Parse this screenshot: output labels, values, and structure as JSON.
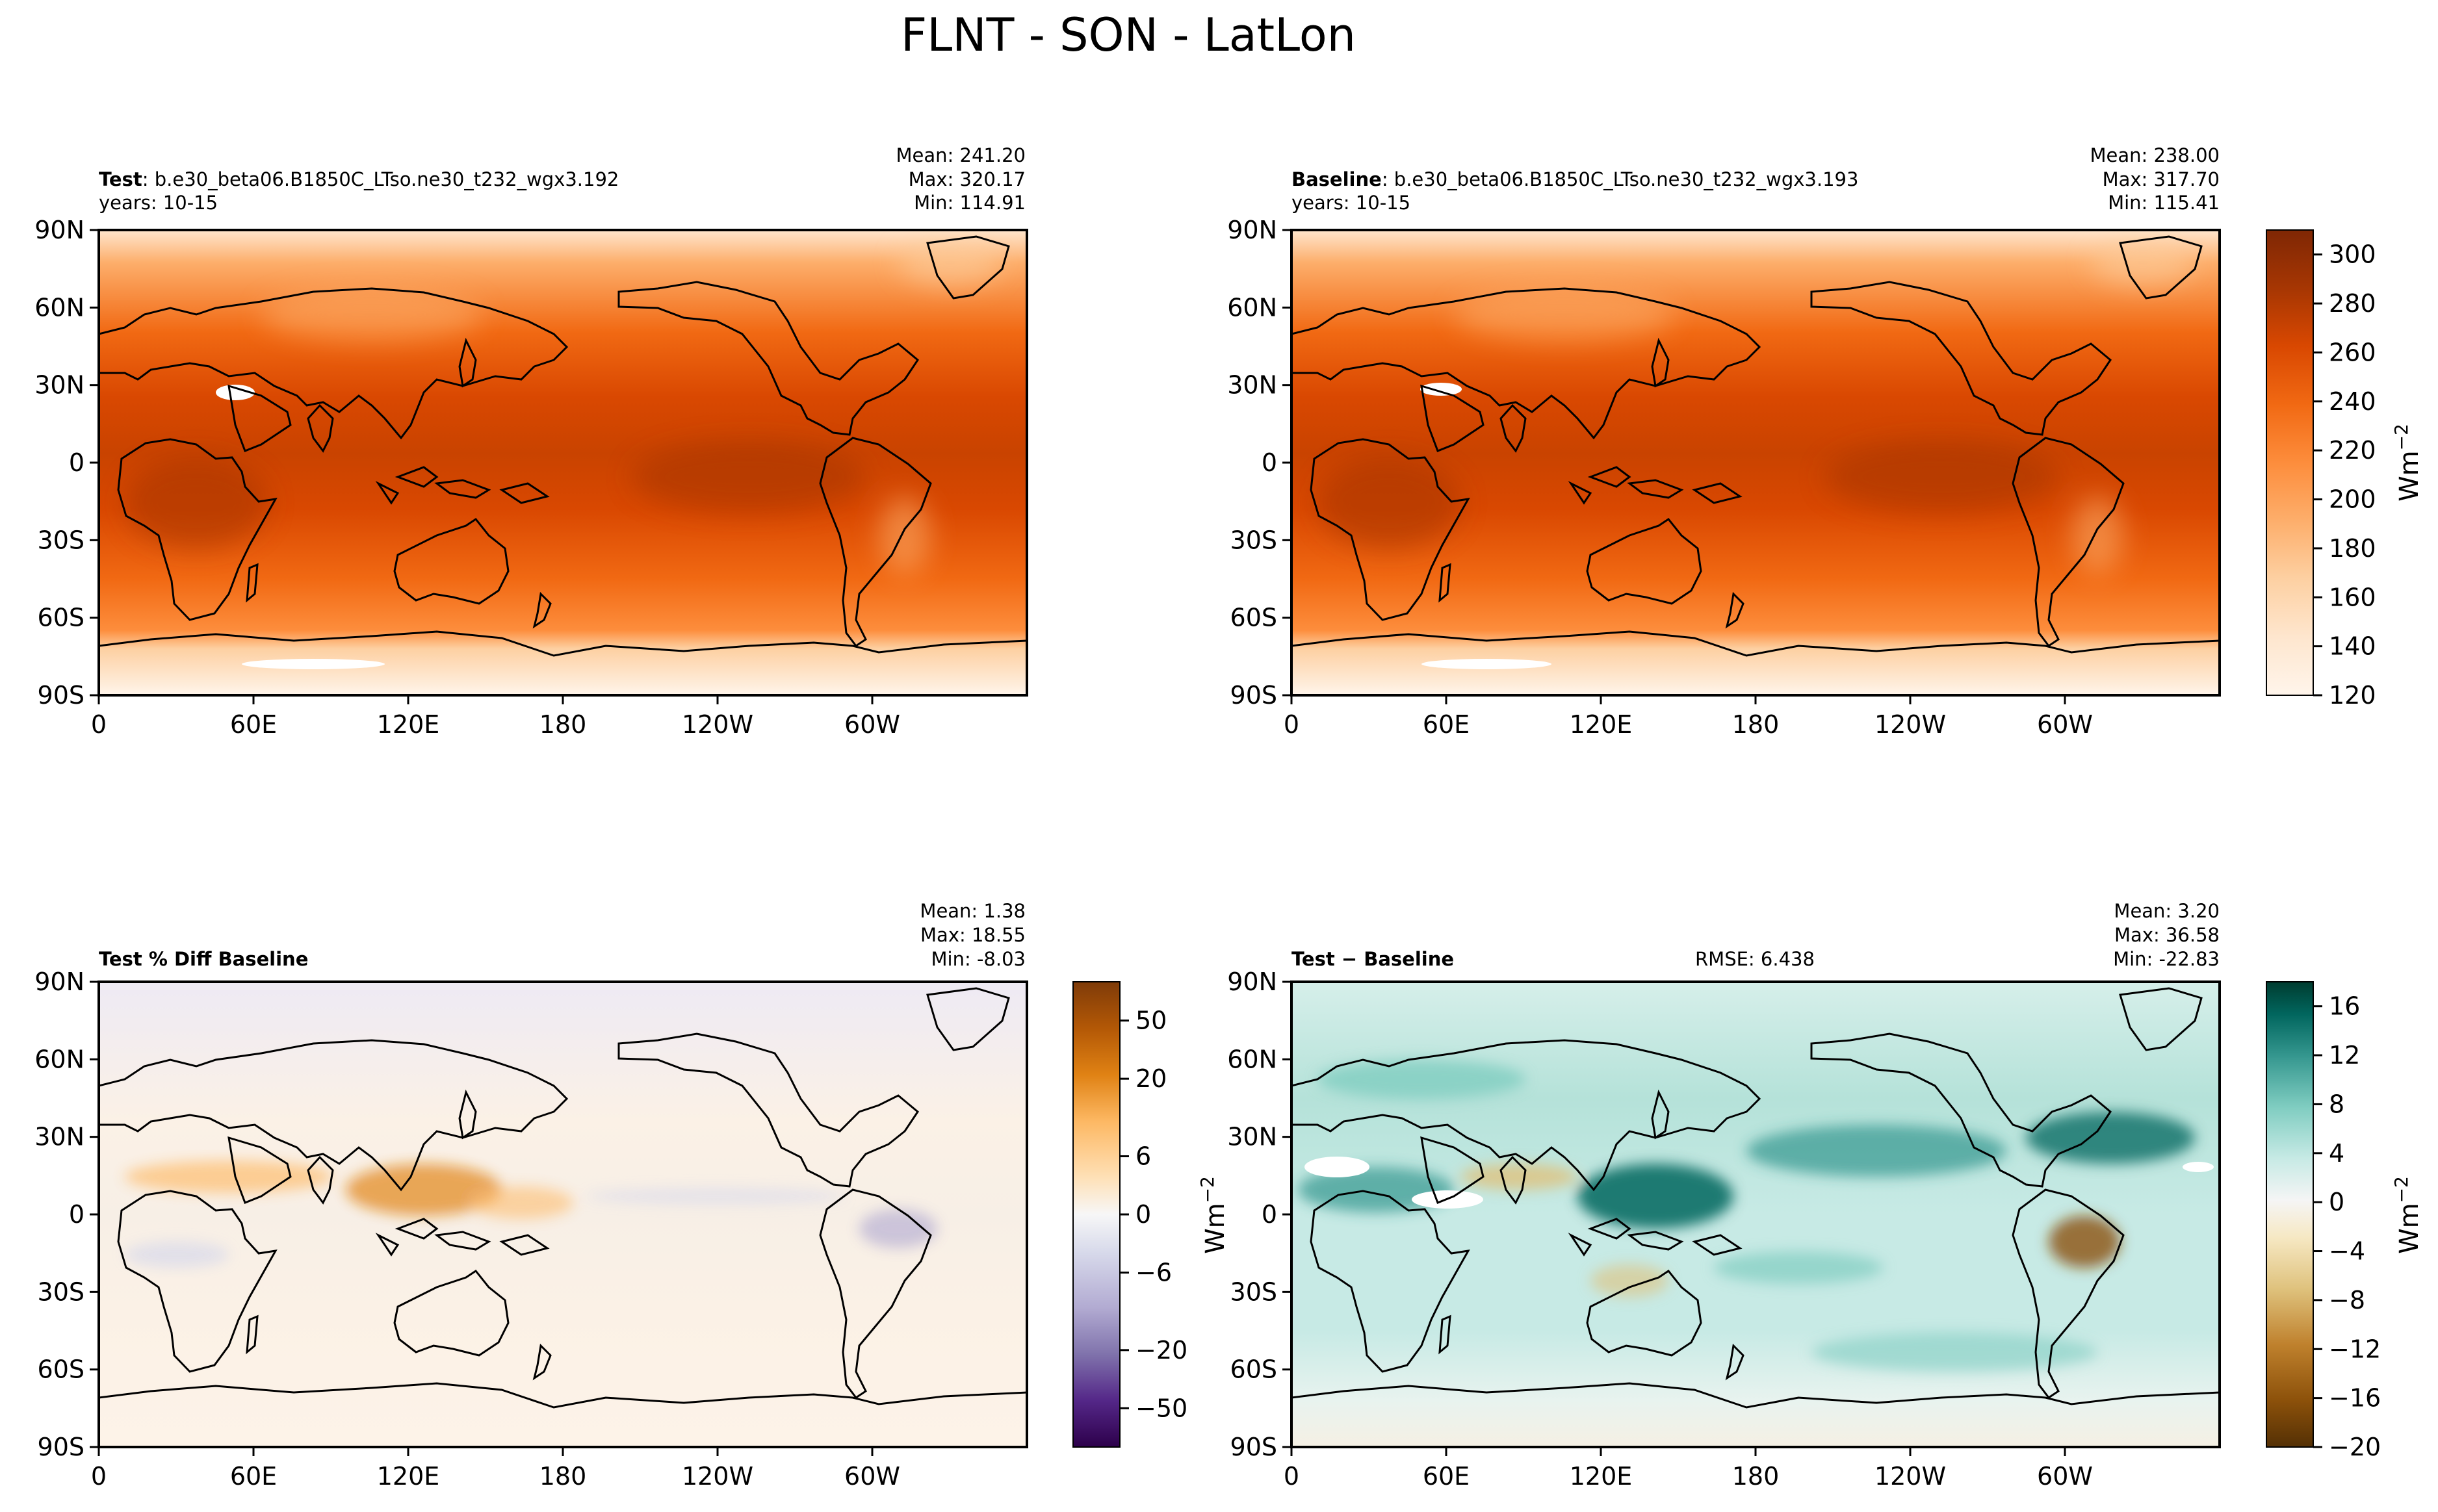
{
  "figure_title": "FLNT - SON - LatLon",
  "lon_ticks": [
    "0",
    "60E",
    "120E",
    "180",
    "120W",
    "60W"
  ],
  "lat_ticks": [
    "90N",
    "60N",
    "30N",
    "0",
    "30S",
    "60S",
    "90S"
  ],
  "colors": {
    "oranges": [
      "#fff5eb",
      "#fee6ce",
      "#fdd0a2",
      "#fdae6b",
      "#fd8d3c",
      "#f16913",
      "#d94801",
      "#a63603",
      "#7f2704"
    ],
    "puor": [
      "#2d004b",
      "#542788",
      "#8073ac",
      "#b2abd2",
      "#d8daeb",
      "#f7f7f7",
      "#fee0b6",
      "#fdb863",
      "#e08214",
      "#b35806",
      "#7f3b08"
    ],
    "brbg": [
      "#543005",
      "#8c510a",
      "#bf812d",
      "#dfc27d",
      "#f6e8c3",
      "#f5f5f5",
      "#c7eae5",
      "#80cdc1",
      "#35978f",
      "#01665e",
      "#003c30"
    ]
  },
  "chart_data": [
    {
      "type": "heatmap",
      "panel": "test",
      "title_bold": "Test",
      "title_rest": ": b.e30_beta06.B1850C_LTso.ne30_t232_wgx3.192",
      "subtitle": "years: 10-15",
      "stats": [
        "Mean: 241.20",
        "Max: 320.17",
        "Min: 114.91"
      ],
      "mean": 241.2,
      "max": 320.17,
      "min": 114.91,
      "field": "FLNT",
      "season": "SON",
      "x_range": [
        0,
        360
      ],
      "y_range": [
        -90,
        90
      ],
      "colormap": "Oranges",
      "levels": [
        120,
        310
      ]
    },
    {
      "type": "heatmap",
      "panel": "baseline",
      "title_bold": "Baseline",
      "title_rest": ": b.e30_beta06.B1850C_LTso.ne30_t232_wgx3.193",
      "subtitle": "years: 10-15",
      "stats": [
        "Mean: 238.00",
        "Max: 317.70",
        "Min: 115.41"
      ],
      "mean": 238.0,
      "max": 317.7,
      "min": 115.41,
      "x_range": [
        0,
        360
      ],
      "y_range": [
        -90,
        90
      ],
      "colormap": "Oranges",
      "colorbar": {
        "label": "Wm",
        "label_sup": "−2",
        "ticks": [
          "120",
          "140",
          "160",
          "180",
          "200",
          "220",
          "240",
          "260",
          "280",
          "300"
        ],
        "tick_values": [
          120,
          140,
          160,
          180,
          200,
          220,
          240,
          260,
          280,
          300
        ],
        "range": [
          120,
          310
        ]
      }
    },
    {
      "type": "heatmap",
      "panel": "pct_diff",
      "title_bold": "Test % Diff Baseline",
      "stats": [
        "Mean:  1.38",
        "Max: 18.55",
        "Min: -8.03"
      ],
      "mean": 1.38,
      "max": 18.55,
      "min": -8.03,
      "x_range": [
        0,
        360
      ],
      "y_range": [
        -90,
        90
      ],
      "colormap": "PuOr_r",
      "colorbar": {
        "ticks": [
          "50",
          "20",
          "6",
          "0",
          "−6",
          "−20",
          "−50"
        ],
        "tick_values": [
          50,
          20,
          6,
          0,
          -6,
          -20,
          -50
        ],
        "levels": [
          -100,
          -75,
          -50,
          -40,
          -30,
          -20,
          -15,
          -10,
          -8,
          -6,
          -4,
          -2,
          0,
          2,
          4,
          6,
          8,
          10,
          15,
          20,
          30,
          40,
          50,
          75,
          100
        ]
      }
    },
    {
      "type": "heatmap",
      "panel": "diff",
      "title_bold": "Test",
      "title_op": " − ",
      "title_rest": "Baseline",
      "rmse": "RMSE: 6.438",
      "stats": [
        "Mean:  3.20",
        "Max: 36.58",
        "Min: -22.83"
      ],
      "mean": 3.2,
      "max": 36.58,
      "min": -22.83,
      "x_range": [
        0,
        360
      ],
      "y_range": [
        -90,
        90
      ],
      "colormap": "BrBG",
      "colorbar": {
        "label": "Wm",
        "label_sup": "−2",
        "ticks": [
          "16",
          "12",
          "8",
          "4",
          "0",
          "−4",
          "−8",
          "−12",
          "−16",
          "−20"
        ],
        "tick_values": [
          16,
          12,
          8,
          4,
          0,
          -4,
          -8,
          -12,
          -16,
          -20
        ],
        "range": [
          -20,
          18
        ]
      }
    }
  ]
}
